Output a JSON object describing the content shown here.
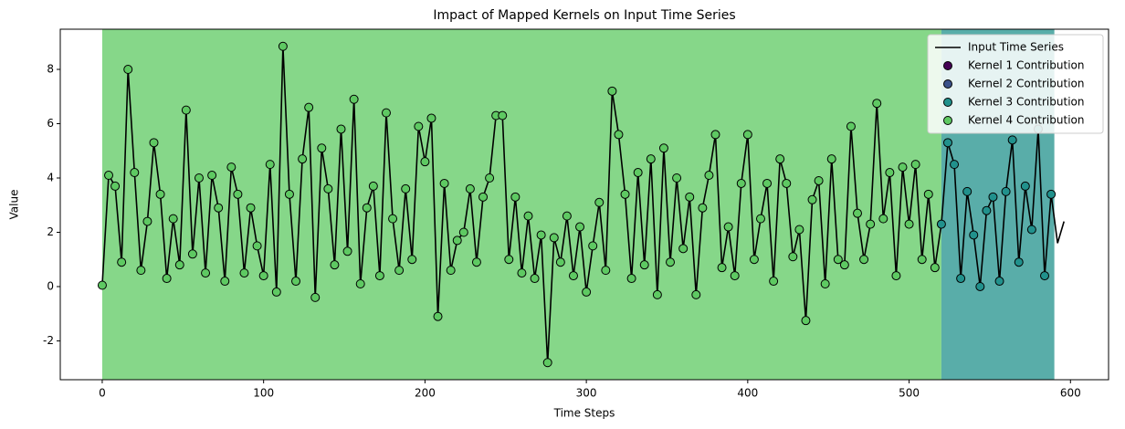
{
  "chart_data": {
    "type": "line",
    "title": "Impact of Mapped Kernels on Input Time Series",
    "x_label": "Time Steps",
    "y_label": "Value",
    "xlim": [
      -26,
      623.6
    ],
    "ylim": [
      -3.43,
      9.48
    ],
    "xticks": [
      0,
      100,
      200,
      300,
      400,
      500,
      600
    ],
    "yticks": [
      -2,
      0,
      2,
      4,
      6,
      8
    ],
    "legend": "upper right",
    "regions": [
      {
        "xlim": [
          0,
          520
        ],
        "color": "#5ec962"
      },
      {
        "xlim": [
          520,
          590
        ],
        "color": "#21918c"
      }
    ],
    "series": [
      {
        "name": "Input Time Series",
        "type": "line",
        "color": "#000000",
        "x": [
          0,
          4,
          8,
          12,
          16,
          20,
          24,
          28,
          32,
          36,
          40,
          44,
          48,
          52,
          56,
          60,
          64,
          68,
          72,
          76,
          80,
          84,
          88,
          92,
          96,
          100,
          104,
          108,
          112,
          116,
          120,
          124,
          128,
          132,
          136,
          140,
          144,
          148,
          152,
          156,
          160,
          164,
          168,
          172,
          176,
          180,
          184,
          188,
          192,
          196,
          200,
          204,
          208,
          212,
          216,
          220,
          224,
          228,
          232,
          236,
          240,
          244,
          248,
          252,
          256,
          260,
          264,
          268,
          272,
          276,
          280,
          284,
          288,
          292,
          296,
          300,
          304,
          308,
          312,
          316,
          320,
          324,
          328,
          332,
          336,
          340,
          344,
          348,
          352,
          356,
          360,
          364,
          368,
          372,
          376,
          380,
          384,
          388,
          392,
          396,
          400,
          404,
          408,
          412,
          416,
          420,
          424,
          428,
          432,
          436,
          440,
          444,
          448,
          452,
          456,
          460,
          464,
          468,
          472,
          476,
          480,
          484,
          488,
          492,
          496,
          500,
          504,
          508,
          512,
          516,
          520,
          524,
          528,
          532,
          536,
          540,
          544,
          548,
          552,
          556,
          560,
          564,
          568,
          572,
          576,
          580,
          584,
          588,
          592,
          596
        ],
        "values": [
          0.05,
          4.1,
          3.7,
          0.9,
          8.0,
          4.2,
          0.6,
          2.4,
          5.3,
          3.4,
          0.3,
          2.5,
          0.8,
          6.5,
          1.2,
          4.0,
          0.5,
          4.1,
          2.9,
          0.2,
          4.4,
          3.4,
          0.5,
          2.9,
          1.5,
          0.4,
          4.5,
          -0.2,
          8.85,
          3.4,
          0.2,
          4.7,
          6.6,
          -0.4,
          5.1,
          3.6,
          0.8,
          5.8,
          1.3,
          6.9,
          0.1,
          2.9,
          3.7,
          0.4,
          6.4,
          2.5,
          0.6,
          3.6,
          1.0,
          5.9,
          4.6,
          6.2,
          -1.1,
          3.8,
          0.6,
          1.7,
          2.0,
          3.6,
          0.9,
          3.3,
          4.0,
          6.3,
          6.3,
          1.0,
          3.3,
          0.5,
          2.6,
          0.3,
          1.9,
          -2.8,
          1.8,
          0.9,
          2.6,
          0.4,
          2.2,
          -0.2,
          1.5,
          3.1,
          0.6,
          7.2,
          5.6,
          3.4,
          0.3,
          4.2,
          0.8,
          4.7,
          -0.3,
          5.1,
          0.9,
          4.0,
          1.4,
          3.3,
          -0.3,
          2.9,
          4.1,
          5.6,
          0.7,
          2.2,
          0.4,
          3.8,
          5.6,
          1.0,
          2.5,
          3.8,
          0.2,
          4.7,
          3.8,
          1.1,
          2.1,
          -1.25,
          3.2,
          3.9,
          0.1,
          4.7,
          1.0,
          0.8,
          5.9,
          2.7,
          1.0,
          2.3,
          6.75,
          2.5,
          4.2,
          0.4,
          4.4,
          2.3,
          4.5,
          1.0,
          3.4,
          0.7,
          2.3,
          5.3,
          4.5,
          0.3,
          3.5,
          1.9,
          0.0,
          2.8,
          3.3,
          0.2,
          3.5,
          5.4,
          0.9,
          3.7,
          2.1,
          5.8,
          0.4,
          3.4,
          1.6,
          2.4
        ]
      },
      {
        "name": "Kernel 1 Contribution",
        "type": "scatter",
        "color": "#440154",
        "x": [],
        "values": []
      },
      {
        "name": "Kernel 2 Contribution",
        "type": "scatter",
        "color": "#3b528b",
        "x": [],
        "values": []
      },
      {
        "name": "Kernel 3 Contribution",
        "type": "scatter",
        "color": "#21918c",
        "x": [
          520,
          524,
          528,
          532,
          536,
          540,
          544,
          548,
          552,
          556,
          560,
          564,
          568,
          572,
          576,
          580,
          584,
          588
        ],
        "values": [
          2.3,
          5.3,
          4.5,
          0.3,
          3.5,
          1.9,
          0.0,
          2.8,
          3.3,
          0.2,
          3.5,
          5.4,
          0.9,
          3.7,
          2.1,
          5.8,
          0.4,
          3.4
        ]
      },
      {
        "name": "Kernel 4 Contribution",
        "type": "scatter",
        "color": "#5ec962",
        "x": [
          0,
          4,
          8,
          12,
          16,
          20,
          24,
          28,
          32,
          36,
          40,
          44,
          48,
          52,
          56,
          60,
          64,
          68,
          72,
          76,
          80,
          84,
          88,
          92,
          96,
          100,
          104,
          108,
          112,
          116,
          120,
          124,
          128,
          132,
          136,
          140,
          144,
          148,
          152,
          156,
          160,
          164,
          168,
          172,
          176,
          180,
          184,
          188,
          192,
          196,
          200,
          204,
          208,
          212,
          216,
          220,
          224,
          228,
          232,
          236,
          240,
          244,
          248,
          252,
          256,
          260,
          264,
          268,
          272,
          276,
          280,
          284,
          288,
          292,
          296,
          300,
          304,
          308,
          312,
          316,
          320,
          324,
          328,
          332,
          336,
          340,
          344,
          348,
          352,
          356,
          360,
          364,
          368,
          372,
          376,
          380,
          384,
          388,
          392,
          396,
          400,
          404,
          408,
          412,
          416,
          420,
          424,
          428,
          432,
          436,
          440,
          444,
          448,
          452,
          456,
          460,
          464,
          468,
          472,
          476,
          480,
          484,
          488,
          492,
          496,
          500,
          504,
          508,
          512,
          516
        ],
        "values": [
          0.05,
          4.1,
          3.7,
          0.9,
          8.0,
          4.2,
          0.6,
          2.4,
          5.3,
          3.4,
          0.3,
          2.5,
          0.8,
          6.5,
          1.2,
          4.0,
          0.5,
          4.1,
          2.9,
          0.2,
          4.4,
          3.4,
          0.5,
          2.9,
          1.5,
          0.4,
          4.5,
          -0.2,
          8.85,
          3.4,
          0.2,
          4.7,
          6.6,
          -0.4,
          5.1,
          3.6,
          0.8,
          5.8,
          1.3,
          6.9,
          0.1,
          2.9,
          3.7,
          0.4,
          6.4,
          2.5,
          0.6,
          3.6,
          1.0,
          5.9,
          4.6,
          6.2,
          -1.1,
          3.8,
          0.6,
          1.7,
          2.0,
          3.6,
          0.9,
          3.3,
          4.0,
          6.3,
          6.3,
          1.0,
          3.3,
          0.5,
          2.6,
          0.3,
          1.9,
          -2.8,
          1.8,
          0.9,
          2.6,
          0.4,
          2.2,
          -0.2,
          1.5,
          3.1,
          0.6,
          7.2,
          5.6,
          3.4,
          0.3,
          4.2,
          0.8,
          4.7,
          -0.3,
          5.1,
          0.9,
          4.0,
          1.4,
          3.3,
          -0.3,
          2.9,
          4.1,
          5.6,
          0.7,
          2.2,
          0.4,
          3.8,
          5.6,
          1.0,
          2.5,
          3.8,
          0.2,
          4.7,
          3.8,
          1.1,
          2.1,
          -1.25,
          3.2,
          3.9,
          0.1,
          4.7,
          1.0,
          0.8,
          5.9,
          2.7,
          1.0,
          2.3,
          6.75,
          2.5,
          4.2,
          0.4,
          4.4,
          2.3,
          4.5,
          1.0,
          3.4,
          0.7
        ]
      }
    ]
  }
}
